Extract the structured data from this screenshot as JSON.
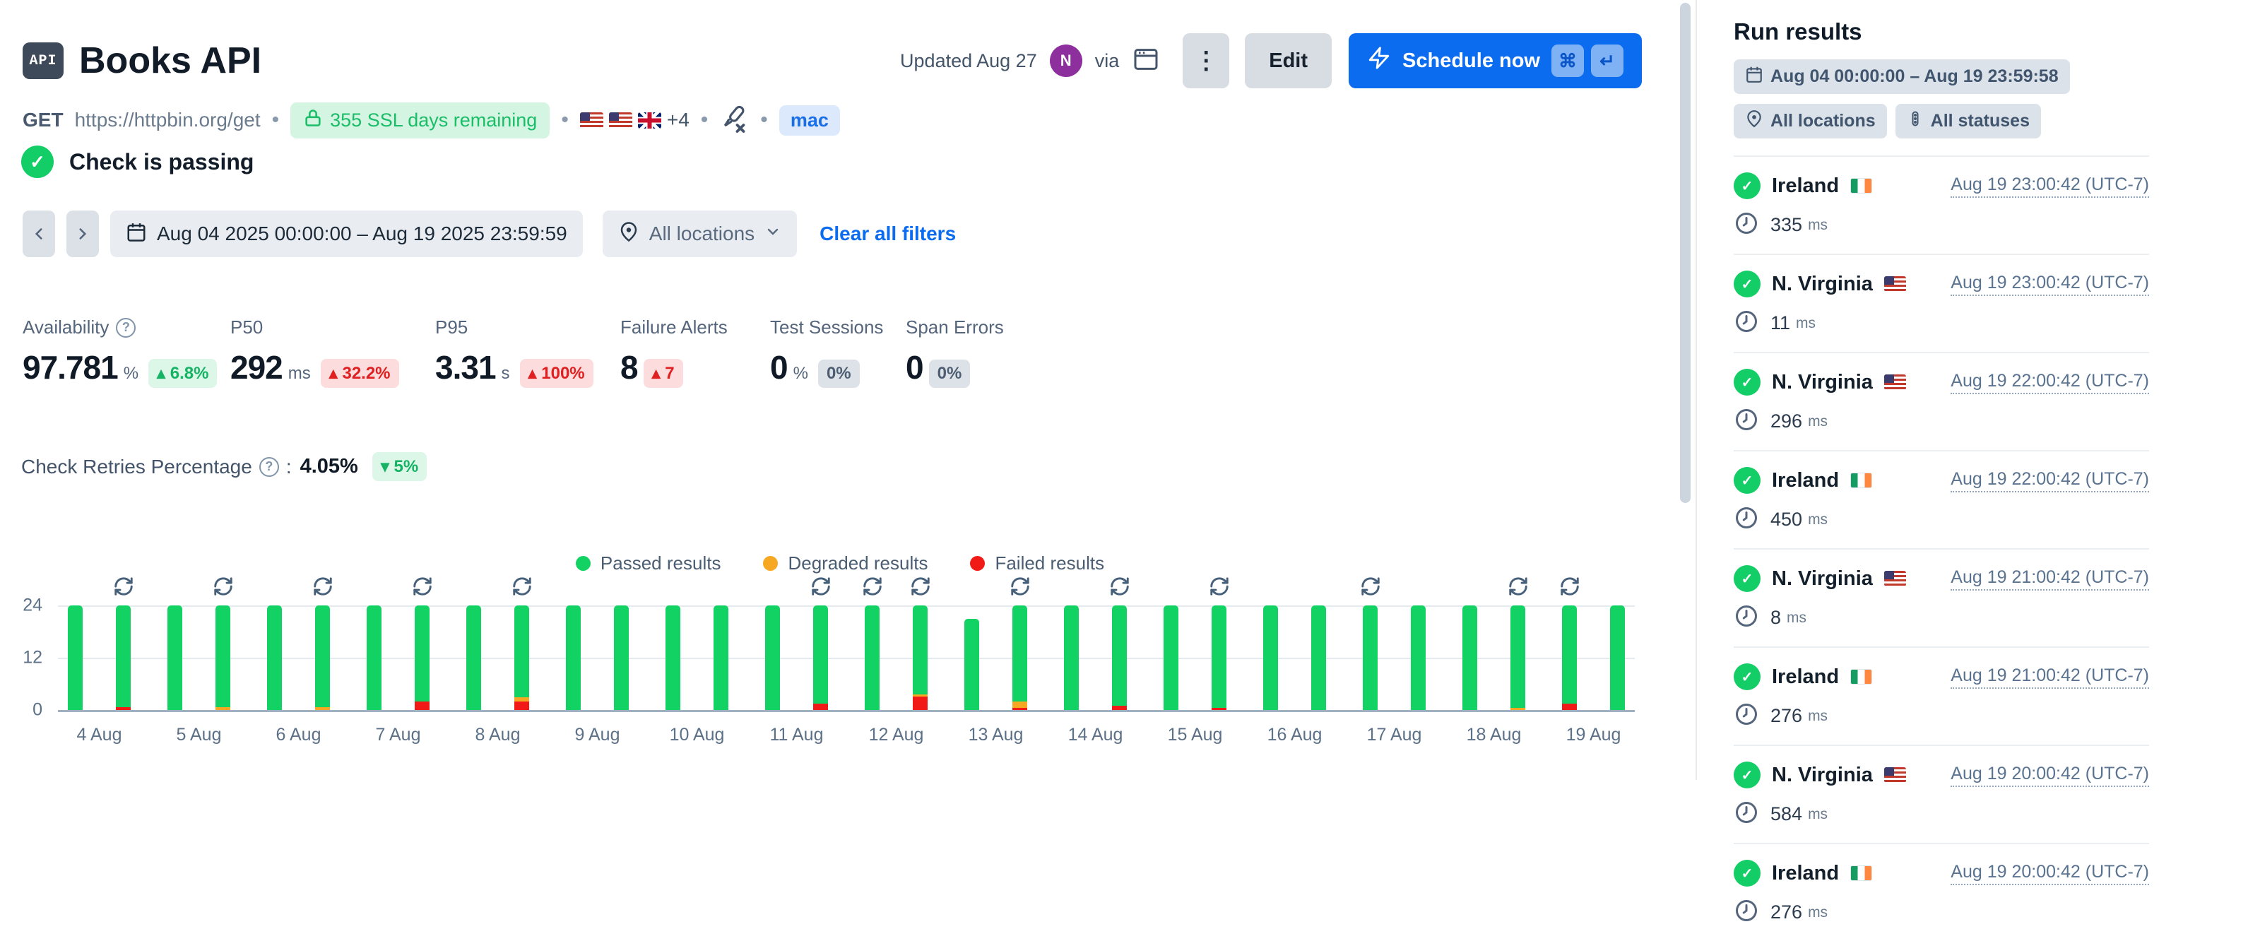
{
  "colors": {
    "accent_blue": "#0b6cf0",
    "passing_green": "#13ce66"
  },
  "header": {
    "badge": "API",
    "title": "Books API",
    "updated": "Updated Aug 27",
    "avatar_initial": "N",
    "via_label": "via",
    "kebab": "⋮",
    "edit_label": "Edit",
    "schedule_label": "Schedule now",
    "kbd_cmd": "⌘",
    "kbd_enter": "↵"
  },
  "meta": {
    "method": "GET",
    "url": "https://httpbin.org/get",
    "ssl_label": "355 SSL days remaining",
    "locations_extra": "+4",
    "runtime_tag": "mac",
    "separator": "•"
  },
  "status": {
    "label": "Check is passing"
  },
  "filters": {
    "prev": "‹",
    "next": "›",
    "date_range": "Aug 04 2025 00:00:00 – Aug 19 2025 23:59:59",
    "locations": "All locations",
    "clear": "Clear all filters"
  },
  "stats": {
    "availability": {
      "label": "Availability",
      "value": "97.781",
      "unit": "%",
      "delta": "▴ 6.8%"
    },
    "p50": {
      "label": "P50",
      "value": "292",
      "unit": "ms",
      "delta": "▴ 32.2%"
    },
    "p95": {
      "label": "P95",
      "value": "3.31",
      "unit": "s",
      "delta": "▴ 100%"
    },
    "failure_alerts": {
      "label": "Failure Alerts",
      "value": "8",
      "unit": "",
      "delta": "▴ 7"
    },
    "test_sessions": {
      "label": "Test Sessions",
      "value": "0",
      "unit": "%",
      "delta": "0%"
    },
    "span_errors": {
      "label": "Span Errors",
      "value": "0",
      "unit": "",
      "delta": "0%"
    }
  },
  "retries": {
    "label": "Check Retries Percentage",
    "colon": ":",
    "value": "4.05%",
    "delta": "▾ 5%"
  },
  "chart_data": {
    "type": "bar",
    "stacked": true,
    "ylim": [
      0,
      24
    ],
    "yticks": [
      "24",
      "12",
      "0"
    ],
    "grid": true,
    "legend_position": "top-center",
    "colors": {
      "passed": "#12d263",
      "degraded": "#f7a823",
      "failed": "#f21a16"
    },
    "legend": [
      {
        "label": "Passed results",
        "color": "#12d263"
      },
      {
        "label": "Degraded results",
        "color": "#f7a823"
      },
      {
        "label": "Failed results",
        "color": "#f21a16"
      }
    ],
    "days": [
      {
        "label": "4 Aug",
        "bars": [
          {
            "passed": 24,
            "degraded": 0,
            "failed": 0,
            "retried": false
          },
          {
            "passed": 23.3,
            "degraded": 0,
            "failed": 0.7,
            "retried": true
          }
        ]
      },
      {
        "label": "5 Aug",
        "bars": [
          {
            "passed": 24,
            "degraded": 0,
            "failed": 0,
            "retried": false
          },
          {
            "passed": 23.3,
            "degraded": 0.7,
            "failed": 0,
            "retried": true
          }
        ]
      },
      {
        "label": "6 Aug",
        "bars": [
          {
            "passed": 24,
            "degraded": 0,
            "failed": 0,
            "retried": false
          },
          {
            "passed": 23.3,
            "degraded": 0.7,
            "failed": 0,
            "retried": true
          }
        ]
      },
      {
        "label": "7 Aug",
        "bars": [
          {
            "passed": 24,
            "degraded": 0,
            "failed": 0,
            "retried": false
          },
          {
            "passed": 22,
            "degraded": 0,
            "failed": 2,
            "retried": true
          }
        ]
      },
      {
        "label": "8 Aug",
        "bars": [
          {
            "passed": 24,
            "degraded": 0,
            "failed": 0,
            "retried": false
          },
          {
            "passed": 21,
            "degraded": 1,
            "failed": 2,
            "retried": true
          }
        ]
      },
      {
        "label": "9 Aug",
        "bars": [
          {
            "passed": 24,
            "degraded": 0,
            "failed": 0,
            "retried": false
          },
          {
            "passed": 24,
            "degraded": 0,
            "failed": 0,
            "retried": false
          }
        ]
      },
      {
        "label": "10 Aug",
        "bars": [
          {
            "passed": 24,
            "degraded": 0,
            "failed": 0,
            "retried": false
          },
          {
            "passed": 24,
            "degraded": 0,
            "failed": 0,
            "retried": false
          }
        ]
      },
      {
        "label": "11 Aug",
        "bars": [
          {
            "passed": 24,
            "degraded": 0,
            "failed": 0,
            "retried": false
          },
          {
            "passed": 22.5,
            "degraded": 0,
            "failed": 1.5,
            "retried": true
          }
        ]
      },
      {
        "label": "12 Aug",
        "bars": [
          {
            "passed": 24,
            "degraded": 0,
            "failed": 0,
            "retried": true
          },
          {
            "passed": 20.5,
            "degraded": 0.5,
            "failed": 3,
            "retried": true
          }
        ]
      },
      {
        "label": "13 Aug",
        "bars": [
          {
            "passed": 21,
            "degraded": 0,
            "failed": 0,
            "retried": false
          },
          {
            "passed": 22,
            "degraded": 1.5,
            "failed": 0.5,
            "retried": true
          }
        ]
      },
      {
        "label": "14 Aug",
        "bars": [
          {
            "passed": 24,
            "degraded": 0,
            "failed": 0,
            "retried": false
          },
          {
            "passed": 23,
            "degraded": 0,
            "failed": 1,
            "retried": true
          }
        ]
      },
      {
        "label": "15 Aug",
        "bars": [
          {
            "passed": 24,
            "degraded": 0,
            "failed": 0,
            "retried": false
          },
          {
            "passed": 23.5,
            "degraded": 0,
            "failed": 0.5,
            "retried": true
          }
        ]
      },
      {
        "label": "16 Aug",
        "bars": [
          {
            "passed": 24,
            "degraded": 0,
            "failed": 0,
            "retried": false
          },
          {
            "passed": 24,
            "degraded": 0,
            "failed": 0,
            "retried": false
          }
        ]
      },
      {
        "label": "17 Aug",
        "bars": [
          {
            "passed": 24,
            "degraded": 0,
            "failed": 0,
            "retried": true
          },
          {
            "passed": 24,
            "degraded": 0,
            "failed": 0,
            "retried": false
          }
        ]
      },
      {
        "label": "18 Aug",
        "bars": [
          {
            "passed": 24,
            "degraded": 0,
            "failed": 0,
            "retried": false
          },
          {
            "passed": 23.5,
            "degraded": 0.5,
            "failed": 0,
            "retried": true
          }
        ]
      },
      {
        "label": "19 Aug",
        "bars": [
          {
            "passed": 22.5,
            "degraded": 0,
            "failed": 1.5,
            "retried": true
          },
          {
            "passed": 24,
            "degraded": 0,
            "failed": 0,
            "retried": false
          }
        ]
      }
    ]
  },
  "run_results": {
    "title": "Run results",
    "date_range": "Aug 04 00:00:00 – Aug 19 23:59:58",
    "locations": "All locations",
    "statuses": "All statuses",
    "items": [
      {
        "location": "Ireland",
        "flag": "ie",
        "time": "Aug 19 23:00:42 (UTC-7)",
        "duration": "335",
        "unit": "ms"
      },
      {
        "location": "N. Virginia",
        "flag": "us",
        "time": "Aug 19 23:00:42 (UTC-7)",
        "duration": "11",
        "unit": "ms"
      },
      {
        "location": "N. Virginia",
        "flag": "us",
        "time": "Aug 19 22:00:42 (UTC-7)",
        "duration": "296",
        "unit": "ms"
      },
      {
        "location": "Ireland",
        "flag": "ie",
        "time": "Aug 19 22:00:42 (UTC-7)",
        "duration": "450",
        "unit": "ms"
      },
      {
        "location": "N. Virginia",
        "flag": "us",
        "time": "Aug 19 21:00:42 (UTC-7)",
        "duration": "8",
        "unit": "ms"
      },
      {
        "location": "Ireland",
        "flag": "ie",
        "time": "Aug 19 21:00:42 (UTC-7)",
        "duration": "276",
        "unit": "ms"
      },
      {
        "location": "N. Virginia",
        "flag": "us",
        "time": "Aug 19 20:00:42 (UTC-7)",
        "duration": "584",
        "unit": "ms"
      },
      {
        "location": "Ireland",
        "flag": "ie",
        "time": "Aug 19 20:00:42 (UTC-7)",
        "duration": "276",
        "unit": "ms"
      }
    ]
  }
}
